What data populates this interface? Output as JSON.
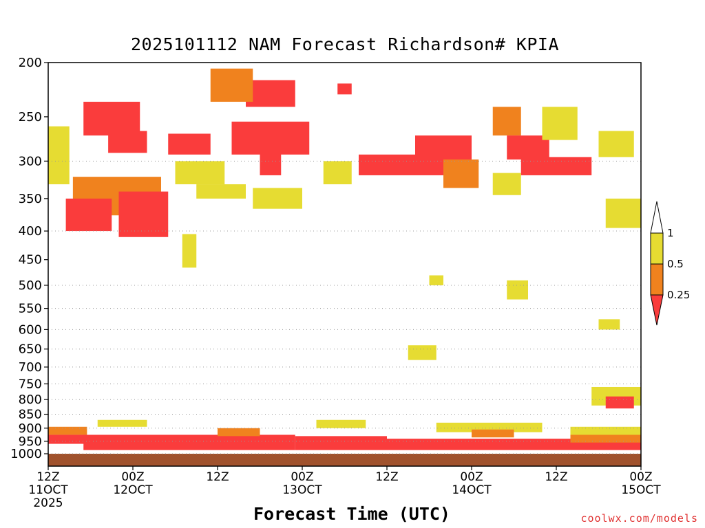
{
  "chart_data": {
    "type": "heatmap",
    "title": "2025101112 NAM Forecast Richardson# KPIA",
    "xlabel": "Forecast Time (UTC)",
    "ylabel": "",
    "y_scale": "log",
    "ylim": [
      1000,
      200
    ],
    "y_ticks": [
      200,
      250,
      300,
      350,
      400,
      450,
      500,
      550,
      600,
      650,
      700,
      750,
      800,
      850,
      900,
      950,
      1000
    ],
    "y_tick_labels": [
      "200",
      "250",
      "300",
      "350",
      "400",
      "450",
      "500",
      "550",
      "600",
      "650",
      "700",
      "750",
      "800",
      "850",
      "900",
      "950",
      "1000"
    ],
    "x_hours_range": [
      0,
      84
    ],
    "x_tick_hours": [
      0,
      12,
      24,
      36,
      48,
      60,
      72,
      84
    ],
    "x_tick_labels": [
      [
        "12Z",
        "11OCT",
        "2025"
      ],
      [
        "00Z",
        "12OCT"
      ],
      [
        "12Z"
      ],
      [
        "00Z",
        "13OCT"
      ],
      [
        "12Z"
      ],
      [
        "00Z",
        "14OCT"
      ],
      [
        "12Z"
      ],
      [
        "00Z",
        "15OCT"
      ]
    ],
    "dotted_grid_levels": [
      300,
      400,
      500,
      550,
      600,
      650,
      700,
      750,
      800,
      850,
      900,
      950,
      1000
    ],
    "colorbar": {
      "labels": [
        "1",
        "0.5",
        "0.25"
      ],
      "colors": {
        "low": "#fa3c3c",
        "mid": "#f0821e",
        "high": "#e6dc32"
      }
    },
    "ground_color": "#a0522d",
    "value_cells": [
      {
        "t": [
          0,
          5.5
        ],
        "p": [
          895,
          925
        ],
        "v": "mid"
      },
      {
        "t": [
          0,
          5.5
        ],
        "p": [
          925,
          960
        ],
        "v": "low"
      },
      {
        "t": [
          7,
          14
        ],
        "p": [
          870,
          895
        ],
        "v": "high"
      },
      {
        "t": [
          5,
          35
        ],
        "p": [
          925,
          985
        ],
        "v": "low"
      },
      {
        "t": [
          35,
          48
        ],
        "p": [
          930,
          985
        ],
        "v": "low"
      },
      {
        "t": [
          48,
          84
        ],
        "p": [
          940,
          985
        ],
        "v": "low"
      },
      {
        "t": [
          24,
          30
        ],
        "p": [
          900,
          930
        ],
        "v": "mid"
      },
      {
        "t": [
          38,
          45
        ],
        "p": [
          870,
          900
        ],
        "v": "high"
      },
      {
        "t": [
          55,
          70
        ],
        "p": [
          880,
          915
        ],
        "v": "high"
      },
      {
        "t": [
          60,
          66
        ],
        "p": [
          905,
          935
        ],
        "v": "mid"
      },
      {
        "t": [
          74,
          84
        ],
        "p": [
          895,
          930
        ],
        "v": "high"
      },
      {
        "t": [
          74,
          84
        ],
        "p": [
          925,
          955
        ],
        "v": "mid"
      },
      {
        "t": [
          5,
          13
        ],
        "p": [
          235,
          270
        ],
        "v": "low"
      },
      {
        "t": [
          3.5,
          16
        ],
        "p": [
          320,
          375
        ],
        "v": "mid"
      },
      {
        "t": [
          2.5,
          9
        ],
        "p": [
          350,
          400
        ],
        "v": "low"
      },
      {
        "t": [
          10,
          17
        ],
        "p": [
          340,
          410
        ],
        "v": "low"
      },
      {
        "t": [
          0,
          3
        ],
        "p": [
          260,
          330
        ],
        "v": "high"
      },
      {
        "t": [
          8.5,
          14
        ],
        "p": [
          265,
          290
        ],
        "v": "low"
      },
      {
        "t": [
          17,
          23
        ],
        "p": [
          268,
          292
        ],
        "v": "low"
      },
      {
        "t": [
          26,
          37
        ],
        "p": [
          255,
          292
        ],
        "v": "low"
      },
      {
        "t": [
          28,
          35
        ],
        "p": [
          215,
          240
        ],
        "v": "low"
      },
      {
        "t": [
          23,
          29
        ],
        "p": [
          205,
          235
        ],
        "v": "mid"
      },
      {
        "t": [
          30,
          33
        ],
        "p": [
          290,
          318
        ],
        "v": "low"
      },
      {
        "t": [
          41,
          43
        ],
        "p": [
          218,
          228
        ],
        "v": "low"
      },
      {
        "t": [
          44,
          58
        ],
        "p": [
          292,
          318
        ],
        "v": "low"
      },
      {
        "t": [
          52,
          60
        ],
        "p": [
          270,
          300
        ],
        "v": "low"
      },
      {
        "t": [
          56,
          61
        ],
        "p": [
          298,
          335
        ],
        "v": "mid"
      },
      {
        "t": [
          63,
          67
        ],
        "p": [
          240,
          270
        ],
        "v": "mid"
      },
      {
        "t": [
          65,
          71
        ],
        "p": [
          270,
          298
        ],
        "v": "low"
      },
      {
        "t": [
          67,
          77
        ],
        "p": [
          295,
          318
        ],
        "v": "low"
      },
      {
        "t": [
          18,
          25
        ],
        "p": [
          300,
          330
        ],
        "v": "high"
      },
      {
        "t": [
          21,
          28
        ],
        "p": [
          330,
          350
        ],
        "v": "high"
      },
      {
        "t": [
          29,
          36
        ],
        "p": [
          335,
          365
        ],
        "v": "high"
      },
      {
        "t": [
          39,
          43
        ],
        "p": [
          300,
          330
        ],
        "v": "high"
      },
      {
        "t": [
          63,
          67
        ],
        "p": [
          315,
          345
        ],
        "v": "high"
      },
      {
        "t": [
          70,
          75
        ],
        "p": [
          240,
          275
        ],
        "v": "high"
      },
      {
        "t": [
          79,
          84
        ],
        "p": [
          350,
          395
        ],
        "v": "high"
      },
      {
        "t": [
          78,
          83
        ],
        "p": [
          265,
          295
        ],
        "v": "high"
      },
      {
        "t": [
          19,
          21
        ],
        "p": [
          405,
          465
        ],
        "v": "high"
      },
      {
        "t": [
          54,
          56
        ],
        "p": [
          480,
          500
        ],
        "v": "high"
      },
      {
        "t": [
          65,
          68
        ],
        "p": [
          490,
          530
        ],
        "v": "high"
      },
      {
        "t": [
          78,
          81
        ],
        "p": [
          575,
          600
        ],
        "v": "high"
      },
      {
        "t": [
          51,
          55
        ],
        "p": [
          640,
          680
        ],
        "v": "high"
      },
      {
        "t": [
          77,
          84
        ],
        "p": [
          760,
          820
        ],
        "v": "high"
      },
      {
        "t": [
          79,
          83
        ],
        "p": [
          790,
          830
        ],
        "v": "low"
      }
    ]
  }
}
